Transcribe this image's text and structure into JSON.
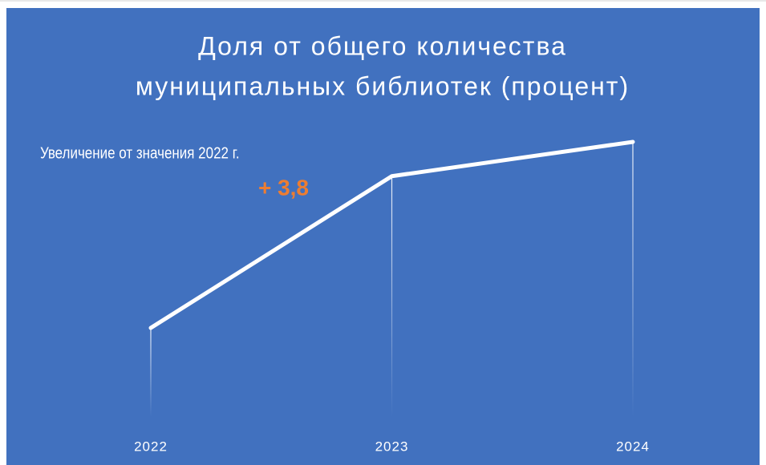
{
  "chart_data": {
    "type": "line",
    "title": [
      "Доля от общего количества",
      "муниципальных библиотек (процент)"
    ],
    "annotation": "Увеличение от значения 2022 г.",
    "annotation_value": "+ 3,8",
    "categories": [
      "2022",
      "2023",
      "2024"
    ],
    "values": [
      10.0,
      13.1,
      13.8
    ],
    "color": "#ffffff",
    "background": "#4171bf",
    "annotation_color": "#ed7d31"
  }
}
